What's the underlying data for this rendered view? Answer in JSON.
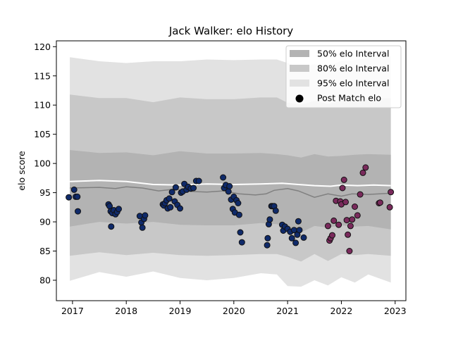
{
  "chart_data": {
    "type": "scatter",
    "title": "Jack Walker: elo History",
    "xlabel": "",
    "ylabel": "elo score",
    "xlim": [
      2016.7,
      2023.2
    ],
    "ylim": [
      76.5,
      121.0
    ],
    "x_ticks": [
      2017,
      2018,
      2019,
      2020,
      2021,
      2022,
      2023
    ],
    "y_ticks": [
      80,
      85,
      90,
      95,
      100,
      105,
      110,
      115,
      120
    ],
    "grid": false,
    "legend_position": "top-right",
    "legend": [
      {
        "label": "50% elo Interval",
        "kind": "band",
        "color": "#b3b3b3"
      },
      {
        "label": "80% elo Interval",
        "kind": "band",
        "color": "#c8c8c8"
      },
      {
        "label": "95% elo Interval",
        "kind": "band",
        "color": "#e2e2e2"
      },
      {
        "label": "Post Match elo",
        "kind": "point",
        "color": "#000000"
      }
    ],
    "bands": {
      "x": [
        2016.95,
        2017.5,
        2018.0,
        2018.5,
        2019.0,
        2019.5,
        2020.0,
        2020.5,
        2020.8,
        2021.0,
        2021.25,
        2021.5,
        2021.75,
        2022.0,
        2022.25,
        2022.5,
        2022.92
      ],
      "p95_upper": [
        118.2,
        117.5,
        117.2,
        117.5,
        117.5,
        117.8,
        117.7,
        117.8,
        117.8,
        117.2,
        116.5,
        117.0,
        116.6,
        117.6,
        117.7,
        118.1,
        118.4
      ],
      "p80_upper": [
        111.8,
        111.2,
        111.2,
        110.5,
        111.3,
        111.0,
        111.0,
        111.3,
        111.3,
        110.4,
        110.1,
        110.7,
        110.2,
        110.7,
        111.0,
        111.2,
        111.2
      ],
      "p50_upper": [
        102.3,
        101.8,
        101.9,
        101.4,
        102.1,
        101.7,
        101.7,
        101.8,
        101.6,
        101.4,
        101.0,
        101.6,
        101.2,
        101.3,
        101.5,
        101.6,
        101.5
      ],
      "p50_lower": [
        89.2,
        90.0,
        89.7,
        90.0,
        89.5,
        89.4,
        89.4,
        89.8,
        89.6,
        89.1,
        88.2,
        89.3,
        89.0,
        89.4,
        89.2,
        89.3,
        88.7
      ],
      "p80_lower": [
        84.2,
        84.8,
        84.3,
        84.7,
        84.3,
        84.2,
        84.3,
        84.5,
        84.5,
        84.0,
        83.2,
        84.5,
        83.3,
        84.5,
        84.3,
        84.5,
        84.2
      ],
      "p95_lower": [
        79.9,
        81.4,
        80.6,
        81.5,
        80.4,
        80.0,
        80.4,
        81.2,
        81.0,
        79.0,
        78.9,
        80.0,
        79.1,
        80.5,
        79.6,
        81.0,
        79.6
      ]
    },
    "lines": [
      {
        "label": "median",
        "color": "#808080",
        "x": [
          2016.95,
          2017.5,
          2017.8,
          2018.0,
          2018.3,
          2018.6,
          2018.9,
          2019.2,
          2019.5,
          2019.8,
          2020.1,
          2020.4,
          2020.6,
          2020.75,
          2021.0,
          2021.2,
          2021.5,
          2021.75,
          2022.0,
          2022.2,
          2022.5,
          2022.92
        ],
        "y": [
          95.8,
          95.9,
          95.7,
          96.0,
          95.8,
          95.3,
          95.6,
          95.2,
          95.1,
          95.3,
          94.8,
          94.6,
          94.8,
          95.4,
          95.7,
          95.3,
          94.2,
          94.8,
          94.4,
          94.8,
          94.7,
          94.9
        ]
      },
      {
        "label": "mean",
        "color": "#ffffff",
        "x": [
          2016.95,
          2017.5,
          2018.0,
          2018.5,
          2019.0,
          2019.5,
          2020.0,
          2020.5,
          2020.9,
          2021.2,
          2021.5,
          2021.8,
          2022.0,
          2022.3,
          2022.6,
          2022.92
        ],
        "y": [
          96.9,
          97.1,
          96.9,
          96.4,
          96.3,
          96.5,
          96.4,
          96.5,
          96.6,
          96.4,
          96.2,
          96.1,
          96.3,
          96.2,
          96.3,
          96.2
        ]
      }
    ],
    "series": [
      {
        "name": "Post Match elo",
        "color": "#0f2a6a",
        "x": [
          2016.93,
          2017.03,
          2017.06,
          2017.09,
          2017.1,
          2017.67,
          2017.69,
          2017.71,
          2017.72,
          2017.74,
          2017.77,
          2017.8,
          2017.83,
          2017.86,
          2018.25,
          2018.28,
          2018.3,
          2018.33,
          2018.35,
          2018.68,
          2018.7,
          2018.72,
          2018.75,
          2018.77,
          2018.8,
          2018.82,
          2018.85,
          2018.9,
          2018.92,
          2018.95,
          2019.0,
          2019.02,
          2019.05,
          2019.08,
          2019.12,
          2019.15,
          2019.2,
          2019.25,
          2019.3,
          2019.35,
          2019.8,
          2019.82,
          2019.85,
          2019.9,
          2019.92,
          2019.95,
          2019.98,
          2020.0,
          2020.02,
          2020.05,
          2020.08,
          2020.1,
          2020.12,
          2020.15,
          2020.62,
          2020.63,
          2020.65,
          2020.67,
          2020.7,
          2020.72,
          2020.75,
          2020.78,
          2020.9,
          2020.92,
          2020.95,
          2021.0,
          2021.05,
          2021.08,
          2021.12,
          2021.15,
          2021.18,
          2021.2,
          2021.22,
          2021.3
        ],
        "y": [
          94.2,
          95.5,
          94.3,
          94.3,
          91.8,
          93.0,
          92.7,
          91.8,
          89.2,
          91.5,
          92.0,
          91.3,
          91.7,
          92.2,
          91.0,
          89.9,
          89.0,
          90.5,
          91.1,
          93.0,
          92.8,
          93.2,
          93.7,
          92.3,
          94.0,
          92.5,
          95.1,
          93.5,
          95.9,
          92.9,
          92.3,
          95.0,
          95.2,
          96.5,
          95.5,
          96.0,
          95.7,
          95.8,
          97.0,
          97.0,
          97.6,
          95.8,
          96.3,
          95.2,
          96.1,
          93.8,
          92.2,
          94.3,
          91.6,
          93.7,
          93.2,
          91.2,
          88.2,
          86.5,
          86.0,
          87.2,
          89.6,
          90.4,
          92.7,
          92.7,
          92.7,
          91.9,
          89.5,
          88.5,
          89.2,
          88.8,
          88.3,
          87.2,
          88.6,
          86.4,
          87.8,
          90.1,
          88.6,
          87.3
        ]
      },
      {
        "name": "Post Match elo (recent)",
        "color": "#7a2a5c",
        "x": [
          2021.75,
          2021.78,
          2021.8,
          2021.83,
          2021.86,
          2021.9,
          2021.95,
          2021.98,
          2022.0,
          2022.02,
          2022.05,
          2022.08,
          2022.1,
          2022.12,
          2022.15,
          2022.17,
          2022.2,
          2022.25,
          2022.3,
          2022.35,
          2022.4,
          2022.45,
          2022.7,
          2022.72,
          2022.9,
          2022.92
        ],
        "y": [
          89.3,
          86.8,
          87.2,
          87.7,
          90.2,
          93.6,
          89.5,
          93.5,
          93.0,
          95.8,
          97.2,
          93.4,
          90.3,
          87.8,
          85.0,
          89.3,
          90.4,
          92.6,
          91.1,
          94.7,
          98.4,
          99.3,
          93.2,
          93.3,
          92.5,
          95.1
        ]
      }
    ]
  }
}
